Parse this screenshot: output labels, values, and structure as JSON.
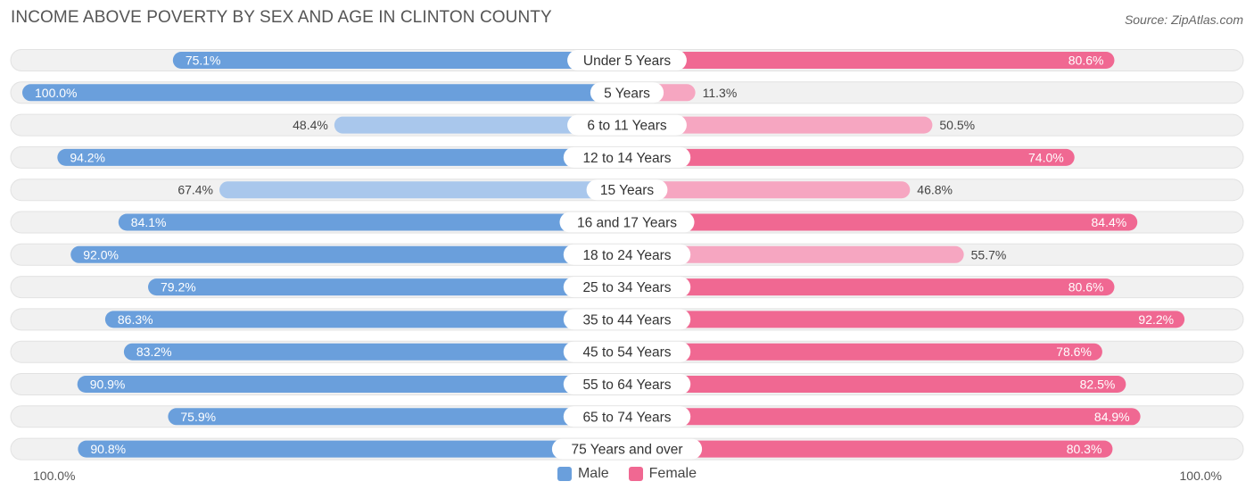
{
  "header": {
    "title": "INCOME ABOVE POVERTY BY SEX AND AGE IN CLINTON COUNTY",
    "source": "Source: ZipAtlas.com"
  },
  "axis": {
    "left_label": "100.0%",
    "right_label": "100.0%"
  },
  "legend": {
    "male_label": "Male",
    "female_label": "Female"
  },
  "colors": {
    "male_strong": "#6a9fdc",
    "male_light": "#a9c7ec",
    "female_strong": "#f06892",
    "female_light": "#f6a6c1",
    "track": "#f1f1f1"
  },
  "chart_data": {
    "type": "bar",
    "orientation": "horizontal-diverging",
    "title": "INCOME ABOVE POVERTY BY SEX AND AGE IN CLINTON COUNTY",
    "xlim": [
      0,
      100
    ],
    "unit": "%",
    "categories": [
      "Under 5 Years",
      "5 Years",
      "6 to 11 Years",
      "12 to 14 Years",
      "15 Years",
      "16 and 17 Years",
      "18 to 24 Years",
      "25 to 34 Years",
      "35 to 44 Years",
      "45 to 54 Years",
      "55 to 64 Years",
      "65 to 74 Years",
      "75 Years and over"
    ],
    "series": [
      {
        "name": "Male",
        "values": [
          75.1,
          100.0,
          48.4,
          94.2,
          67.4,
          84.1,
          92.0,
          79.2,
          86.3,
          83.2,
          90.9,
          75.9,
          90.8
        ],
        "labels": [
          "75.1%",
          "100.0%",
          "48.4%",
          "94.2%",
          "67.4%",
          "84.1%",
          "92.0%",
          "79.2%",
          "86.3%",
          "83.2%",
          "90.9%",
          "75.9%",
          "90.8%"
        ]
      },
      {
        "name": "Female",
        "values": [
          80.6,
          11.3,
          50.5,
          74.0,
          46.8,
          84.4,
          55.7,
          80.6,
          92.2,
          78.6,
          82.5,
          84.9,
          80.3
        ],
        "labels": [
          "80.6%",
          "11.3%",
          "50.5%",
          "74.0%",
          "46.8%",
          "84.4%",
          "55.7%",
          "80.6%",
          "92.2%",
          "78.6%",
          "82.5%",
          "84.9%",
          "80.3%"
        ]
      }
    ],
    "legend_position": "bottom-center"
  }
}
